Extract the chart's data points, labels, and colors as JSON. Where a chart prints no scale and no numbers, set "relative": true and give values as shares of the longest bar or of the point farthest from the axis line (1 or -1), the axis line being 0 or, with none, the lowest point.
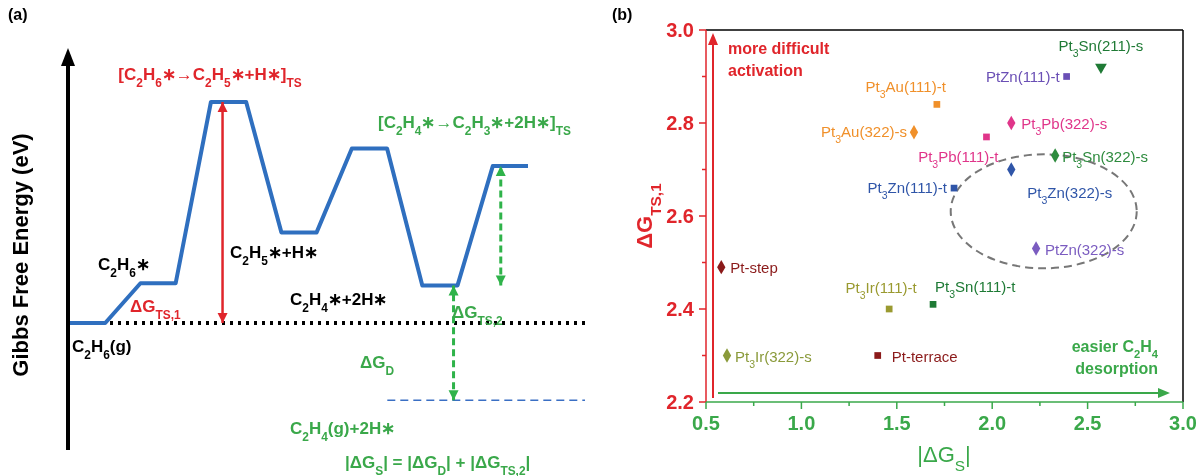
{
  "chart_data": [
    {
      "type": "line",
      "title": "(a)",
      "ylabel": "Gibbs Free Energy (eV)",
      "relative": true,
      "color": "#2f6fbf",
      "line_style": "solid",
      "marker": "none",
      "categories": [
        null,
        null,
        null,
        null,
        null,
        null,
        null,
        null,
        null,
        null,
        null,
        null,
        null,
        null
      ],
      "values": [
        0,
        0,
        0.18,
        0.18,
        1,
        1,
        0.41,
        0.41,
        0.79,
        0.79,
        0.17,
        0.17,
        0.71,
        0.71
      ],
      "ref_lines": [
        {
          "axis": "y",
          "value": 0,
          "line_style": "dotted",
          "color": "#000000"
        },
        {
          "axis": "y",
          "value": -0.35,
          "label": "C$_{2}$H$_{4}$(g)+2H∗",
          "line_style": "dashed",
          "color": "#3a6fc4"
        }
      ],
      "annotations": [
        "[C$_{2}$H$_{6}$∗→C$_{2}$H$_{5}$∗+H∗]$_{TS}$",
        "[C$_{2}$H$_{4}$∗→C$_{2}$H$_{3}$∗+2H∗]$_{TS}$",
        "C$_{2}$H$_{6}$∗",
        "C$_{2}$H$_{5}$∗+H∗",
        "C$_{2}$H$_{4}$∗+2H∗",
        "C$_{2}$H$_{6}$(g)",
        "ΔG$_{TS,1}$",
        "ΔG$_{TS,2}$",
        "ΔG$_{D}$",
        "|ΔG$_{S}$| = |ΔG$_{D}$| + |ΔG$_{TS,2}$|"
      ]
    },
    {
      "type": "scatter",
      "title": "(b)",
      "xlabel": "|ΔG$_{S}$|",
      "ylabel": "ΔG$_{TS,1}$",
      "xlim": [
        0.5,
        3.0
      ],
      "ylim": [
        2.2,
        3.0
      ],
      "xticks": [
        {
          "value": 0.5,
          "label": "0.5"
        },
        {
          "value": 0.75,
          "label": null
        },
        {
          "value": 1.0,
          "label": "1.0"
        },
        {
          "value": 1.25,
          "label": null
        },
        {
          "value": 1.5,
          "label": "1.5"
        },
        {
          "value": 1.75,
          "label": null
        },
        {
          "value": 2.0,
          "label": "2.0"
        },
        {
          "value": 2.25,
          "label": null
        },
        {
          "value": 2.5,
          "label": "2.5"
        },
        {
          "value": 2.75,
          "label": null
        },
        {
          "value": 3.0,
          "label": "3.0"
        }
      ],
      "yticks": [
        {
          "value": 2.2,
          "label": "2.2"
        },
        {
          "value": 2.3,
          "label": null
        },
        {
          "value": 2.4,
          "label": "2.4"
        },
        {
          "value": 2.5,
          "label": null
        },
        {
          "value": 2.6,
          "label": "2.6"
        },
        {
          "value": 2.7,
          "label": null
        },
        {
          "value": 2.8,
          "label": "2.8"
        },
        {
          "value": 2.9,
          "label": null
        },
        {
          "value": 3.0,
          "label": "3.0"
        }
      ],
      "series": [
        {
          "name": "Pt$_{3}$Sn(211)-s",
          "color": "#1f7a35",
          "marker": "triangle",
          "x": [
            2.57
          ],
          "values": [
            2.92
          ]
        },
        {
          "name": "PtZn(111)-t",
          "color": "#6a4fb5",
          "marker": "square",
          "x": [
            2.39
          ],
          "values": [
            2.9
          ]
        },
        {
          "name": "Pt$_{3}$Au(111)-t",
          "color": "#f0902a",
          "marker": "square",
          "x": [
            1.71
          ],
          "values": [
            2.84
          ]
        },
        {
          "name": "Pt$_{3}$Au(322)-s",
          "color": "#f0902a",
          "marker": "diamond",
          "x": [
            1.59
          ],
          "values": [
            2.78
          ]
        },
        {
          "name": "Pt$_{3}$Pb(322)-s",
          "color": "#e0358a",
          "marker": "diamond",
          "x": [
            2.1
          ],
          "values": [
            2.8
          ]
        },
        {
          "name": "Pt$_{3}$Pb(111)-t",
          "color": "#e0358a",
          "marker": "square",
          "x": [
            1.97
          ],
          "values": [
            2.77
          ]
        },
        {
          "name": "Pt$_{3}$Sn(322)-s",
          "color": "#2e8b3e",
          "marker": "diamond",
          "x": [
            2.33
          ],
          "values": [
            2.73
          ]
        },
        {
          "name": "Pt$_{3}$Zn(322)-s",
          "color": "#2f55a8",
          "marker": "diamond",
          "x": [
            2.1
          ],
          "values": [
            2.7
          ]
        },
        {
          "name": "Pt$_{3}$Zn(111)-t",
          "color": "#2f55a8",
          "marker": "square",
          "x": [
            1.8
          ],
          "values": [
            2.66
          ]
        },
        {
          "name": "PtZn(322)-s",
          "color": "#7b5cc0",
          "marker": "diamond",
          "x": [
            2.23
          ],
          "values": [
            2.53
          ]
        },
        {
          "name": "Pt-step",
          "color": "#8b1a1a",
          "marker": "diamond",
          "x": [
            0.58
          ],
          "values": [
            2.49
          ]
        },
        {
          "name": "Pt$_{3}$Ir(111)-t",
          "color": "#9a9a30",
          "marker": "square",
          "x": [
            1.46
          ],
          "values": [
            2.4
          ]
        },
        {
          "name": "Pt$_{3}$Sn(111)-t",
          "color": "#1e7a35",
          "marker": "square",
          "x": [
            1.69
          ],
          "values": [
            2.41
          ]
        },
        {
          "name": "Pt$_{3}$Ir(322)-s",
          "color": "#8a9a3a",
          "marker": "diamond",
          "x": [
            0.61
          ],
          "values": [
            2.3
          ]
        },
        {
          "name": "Pt-terrace",
          "color": "#8b1a1a",
          "marker": "square",
          "x": [
            1.4
          ],
          "values": [
            2.3
          ]
        }
      ],
      "annotations": [
        "more difficult activation",
        "easier C$_{2}$H$_{4}$ desorption"
      ]
    }
  ]
}
